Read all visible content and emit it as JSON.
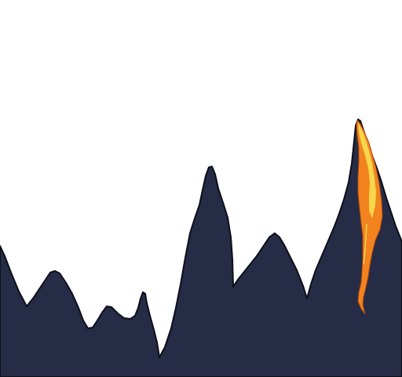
{
  "scene": {
    "sky_color": "#ffffff",
    "mountain_fill": "#262c45",
    "mountain_outline": "#0d0f1a",
    "lava_outer_color": "#f2831f",
    "lava_inner_color": "#f7d64a",
    "lava_edge_color": "#b04a10",
    "elements": [
      "mountain-range",
      "lava-flow"
    ]
  }
}
